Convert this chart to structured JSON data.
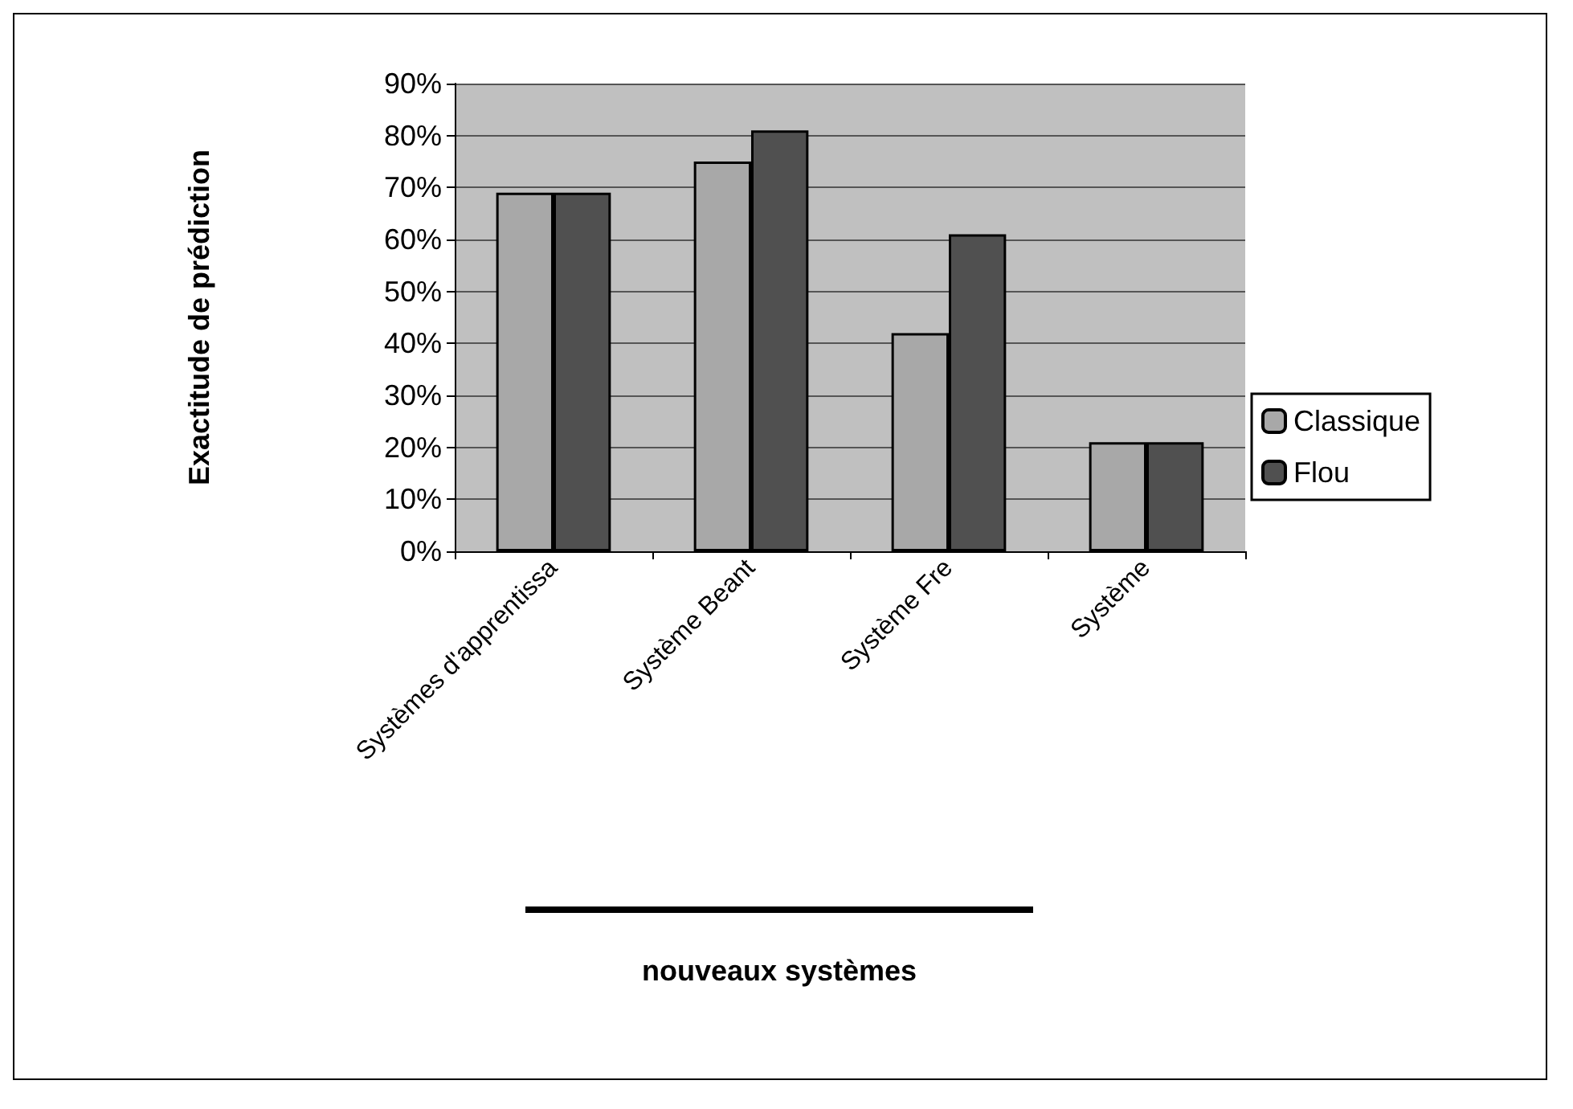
{
  "chart_data": {
    "type": "bar",
    "ylabel": "Exactitude de prédiction",
    "categories": [
      "Systèmes d'apprentissa",
      "Système Beant",
      "Système Fre",
      "Système"
    ],
    "series": [
      {
        "name": "Classique",
        "color": "#a8a8a8",
        "values": [
          69,
          75,
          42,
          21
        ]
      },
      {
        "name": "Flou",
        "color": "#505050",
        "values": [
          69,
          81,
          61,
          21
        ]
      }
    ],
    "ylim": [
      0,
      90
    ],
    "yticks": [
      {
        "value": 0,
        "label": "0%"
      },
      {
        "value": 10,
        "label": "10%"
      },
      {
        "value": 20,
        "label": "20%"
      },
      {
        "value": 30,
        "label": "30%"
      },
      {
        "value": 40,
        "label": "40%"
      },
      {
        "value": 50,
        "label": "50%"
      },
      {
        "value": 60,
        "label": "60%"
      },
      {
        "value": 70,
        "label": "70%"
      },
      {
        "value": 80,
        "label": "80%"
      },
      {
        "value": 90,
        "label": "90%"
      }
    ],
    "annotations": [
      "nouveaux systèmes"
    ],
    "grid": "y",
    "legend": "right"
  }
}
